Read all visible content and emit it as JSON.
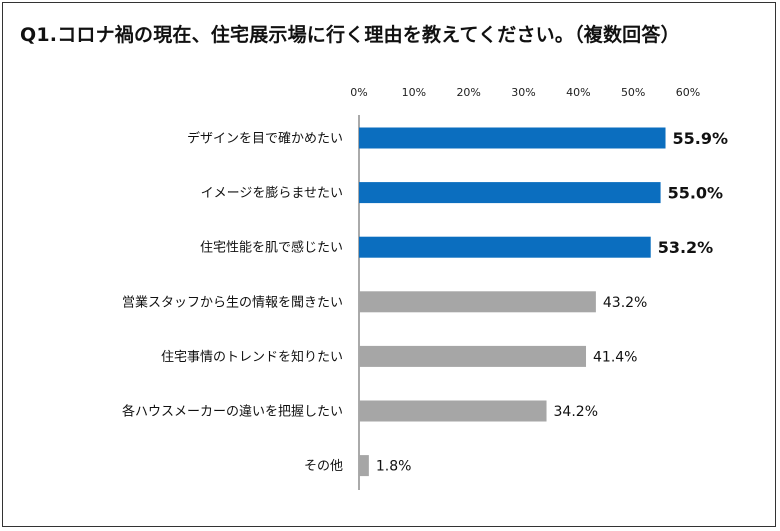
{
  "title": "Q1.コロナ禍の現在、住宅展示場に行く理由を教えてください。（複数回答）",
  "colors": {
    "highlight": "#0b6ebf",
    "normal": "#a6a6a6",
    "text": "#111111",
    "border": "#333333"
  },
  "chart_data": {
    "type": "bar",
    "orientation": "horizontal",
    "title": "Q1.コロナ禍の現在、住宅展示場に行く理由を教えてください。（複数回答）",
    "xlabel": "",
    "ylabel": "",
    "xlim": [
      0,
      60
    ],
    "ticks": [
      0,
      10,
      20,
      30,
      40,
      50,
      60
    ],
    "tick_labels": [
      "0%",
      "10%",
      "20%",
      "30%",
      "40%",
      "50%",
      "60%"
    ],
    "grid": false,
    "categories": [
      "デザインを目で確かめたい",
      "イメージを膨らませたい",
      "住宅性能を肌で感じたい",
      "営業スタッフから生の情報を聞きたい",
      "住宅事情のトレンドを知りたい",
      "各ハウスメーカーの違いを把握したい",
      "その他"
    ],
    "values": [
      55.9,
      55.0,
      53.2,
      43.2,
      41.4,
      34.2,
      1.8
    ],
    "value_labels": [
      "55.9%",
      "55.0%",
      "53.2%",
      "43.2%",
      "41.4%",
      "34.2%",
      "1.8%"
    ],
    "highlighted": [
      true,
      true,
      true,
      false,
      false,
      false,
      false
    ]
  }
}
